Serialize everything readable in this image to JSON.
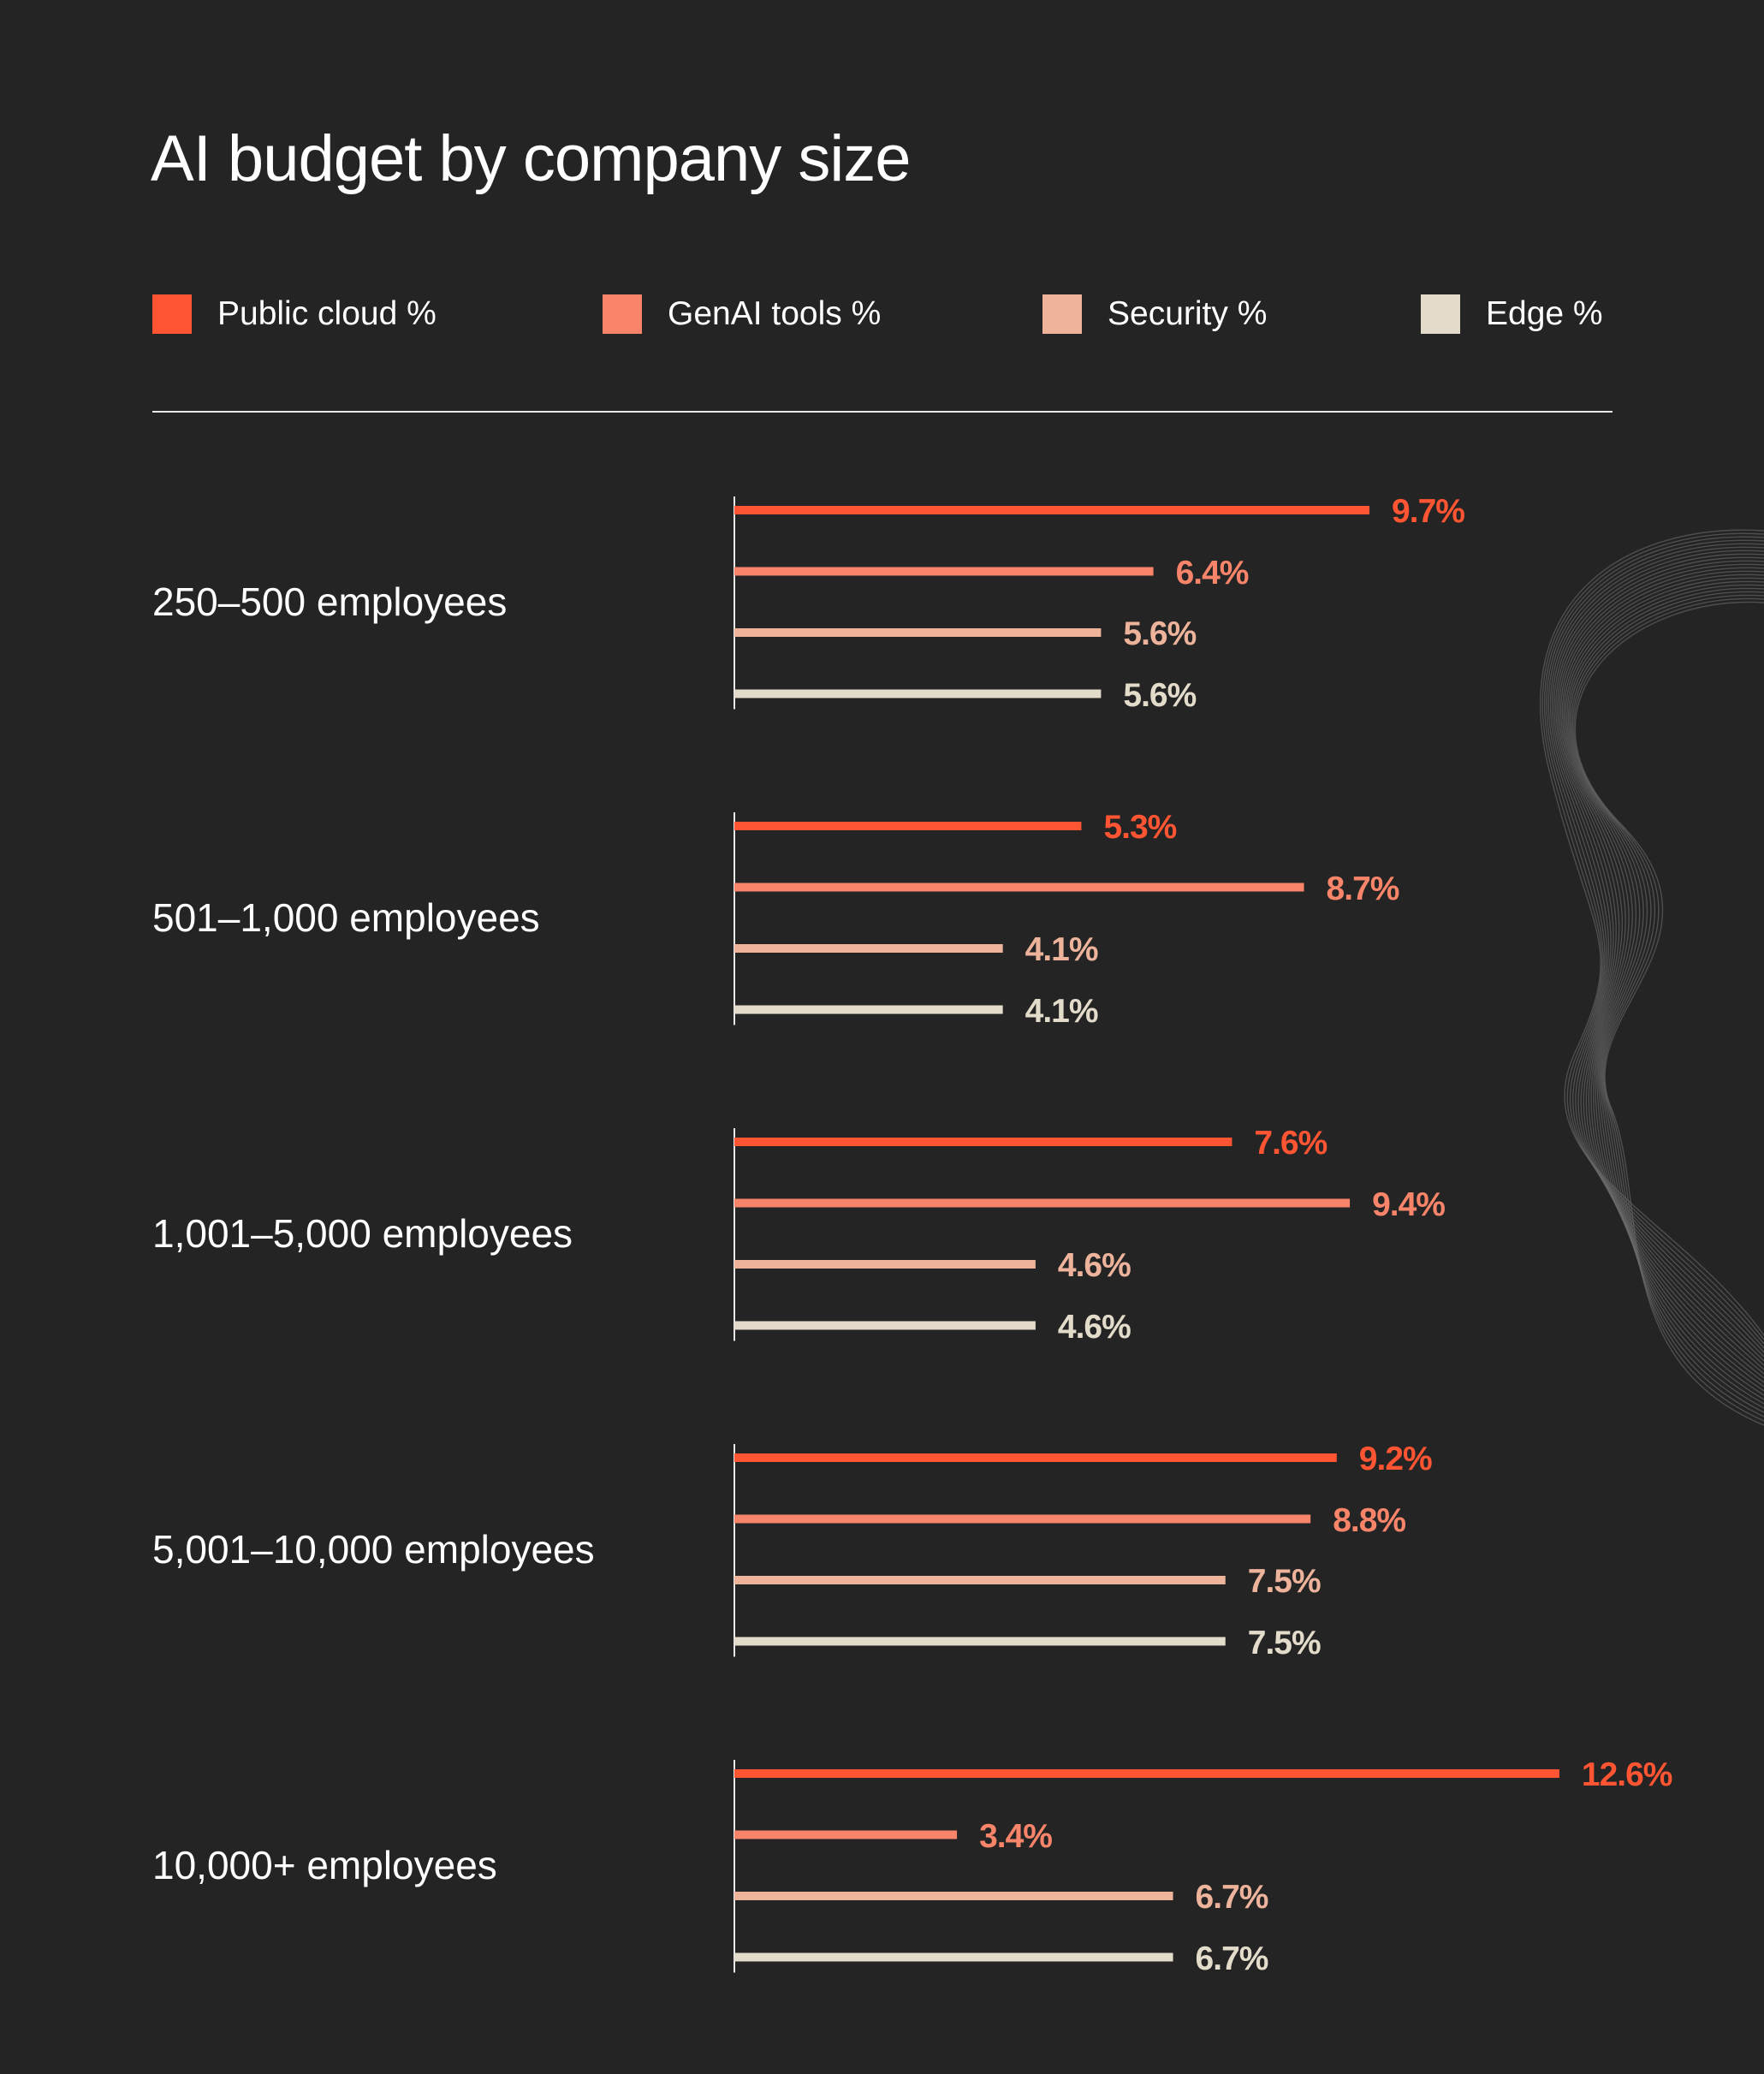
{
  "title": "AI budget by company size",
  "legend": [
    {
      "label": "Public cloud %",
      "color": "#FF5533"
    },
    {
      "label": "GenAI tools %",
      "color": "#F8846A"
    },
    {
      "label": "Security %",
      "color": "#EDB39B"
    },
    {
      "label": "Edge %",
      "color": "#E4DCCB"
    }
  ],
  "chart_data": {
    "type": "bar",
    "orientation": "horizontal",
    "title": "AI budget by company size",
    "categories": [
      "250–500 employees",
      "501–1,000 employees",
      "1,001–5,000 employees",
      "5,001–10,000 employees",
      "10,000+ employees"
    ],
    "series": [
      {
        "name": "Public cloud %",
        "color": "#FF5533",
        "values": [
          9.7,
          5.3,
          7.6,
          9.2,
          12.6
        ]
      },
      {
        "name": "GenAI tools %",
        "color": "#F8846A",
        "values": [
          6.4,
          8.7,
          9.4,
          8.8,
          3.4
        ]
      },
      {
        "name": "Security %",
        "color": "#EDB39B",
        "values": [
          5.6,
          4.1,
          4.6,
          7.5,
          6.7
        ]
      },
      {
        "name": "Edge %",
        "color": "#E4DCCB",
        "values": [
          5.6,
          4.1,
          4.6,
          7.5,
          6.7
        ]
      }
    ],
    "value_suffix": "%",
    "legend_position": "top",
    "grid": false
  }
}
